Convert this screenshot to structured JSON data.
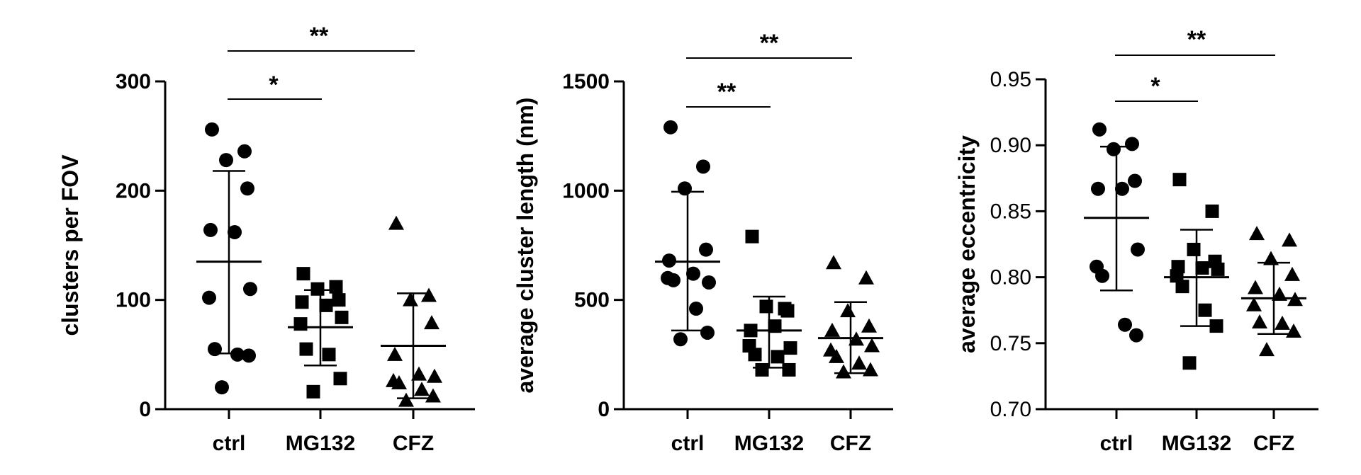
{
  "chart_data": [
    {
      "type": "scatter",
      "ylabel": "clusters per FOV",
      "xlabel": "",
      "categories": [
        "ctrl",
        "MG132",
        "CFZ"
      ],
      "ylim": [
        0,
        300
      ],
      "yticks": [
        "0",
        "100",
        "200",
        "300"
      ],
      "series": [
        {
          "category": "ctrl",
          "marker": "circle",
          "values": [
            256,
            236,
            228,
            202,
            164,
            162,
            110,
            102,
            55,
            50,
            49,
            20
          ],
          "mean": 135,
          "sd": [
            51,
            218
          ]
        },
        {
          "category": "MG132",
          "marker": "square",
          "values": [
            124,
            112,
            110,
            100,
            98,
            95,
            84,
            78,
            55,
            50,
            28,
            16
          ],
          "mean": 75,
          "sd": [
            40,
            109
          ]
        },
        {
          "category": "CFZ",
          "marker": "triangle",
          "values": [
            170,
            104,
            100,
            79,
            50,
            32,
            30,
            26,
            24,
            18,
            12,
            8
          ],
          "mean": 58,
          "sd": [
            10,
            106
          ]
        }
      ],
      "significance": [
        {
          "from": "ctrl",
          "to": "MG132",
          "label": "*"
        },
        {
          "from": "ctrl",
          "to": "CFZ",
          "label": "**"
        }
      ]
    },
    {
      "type": "scatter",
      "ylabel": "average cluster length (nm)",
      "xlabel": "",
      "categories": [
        "ctrl",
        "MG132",
        "CFZ"
      ],
      "ylim": [
        0,
        1500
      ],
      "yticks": [
        "0",
        "500",
        "1000",
        "1500"
      ],
      "series": [
        {
          "category": "ctrl",
          "marker": "circle",
          "values": [
            1290,
            1110,
            1010,
            730,
            680,
            620,
            580,
            600,
            590,
            460,
            350,
            320
          ],
          "mean": 675,
          "sd": [
            360,
            995
          ]
        },
        {
          "category": "MG132",
          "marker": "square",
          "values": [
            790,
            460,
            470,
            450,
            360,
            380,
            280,
            290,
            250,
            240,
            180,
            180
          ],
          "mean": 360,
          "sd": [
            190,
            515
          ]
        },
        {
          "category": "CFZ",
          "marker": "triangle",
          "values": [
            670,
            600,
            450,
            380,
            360,
            320,
            290,
            270,
            240,
            210,
            180,
            170
          ],
          "mean": 325,
          "sd": [
            165,
            490
          ]
        }
      ],
      "significance": [
        {
          "from": "ctrl",
          "to": "MG132",
          "label": "**"
        },
        {
          "from": "ctrl",
          "to": "CFZ",
          "label": "**"
        }
      ]
    },
    {
      "type": "scatter",
      "ylabel": "average eccentricity",
      "xlabel": "",
      "categories": [
        "ctrl",
        "MG132",
        "CFZ"
      ],
      "ylim": [
        0.7,
        0.95
      ],
      "yticks": [
        "0.70",
        "0.75",
        "0.80",
        "0.85",
        "0.90",
        "0.95"
      ],
      "series": [
        {
          "category": "ctrl",
          "marker": "circle",
          "values": [
            0.912,
            0.901,
            0.897,
            0.873,
            0.867,
            0.867,
            0.821,
            0.808,
            0.801,
            0.764,
            0.756
          ],
          "mean": 0.845,
          "sd": [
            0.79,
            0.899
          ]
        },
        {
          "category": "MG132",
          "marker": "square",
          "values": [
            0.874,
            0.85,
            0.821,
            0.812,
            0.808,
            0.807,
            0.806,
            0.801,
            0.793,
            0.775,
            0.763,
            0.735
          ],
          "mean": 0.8,
          "sd": [
            0.763,
            0.836
          ]
        },
        {
          "category": "CFZ",
          "marker": "triangle",
          "values": [
            0.833,
            0.828,
            0.814,
            0.802,
            0.792,
            0.787,
            0.783,
            0.779,
            0.766,
            0.765,
            0.759,
            0.745
          ],
          "mean": 0.784,
          "sd": [
            0.757,
            0.811
          ]
        }
      ],
      "significance": [
        {
          "from": "ctrl",
          "to": "MG132",
          "label": "*"
        },
        {
          "from": "ctrl",
          "to": "CFZ",
          "label": "**"
        }
      ]
    }
  ]
}
